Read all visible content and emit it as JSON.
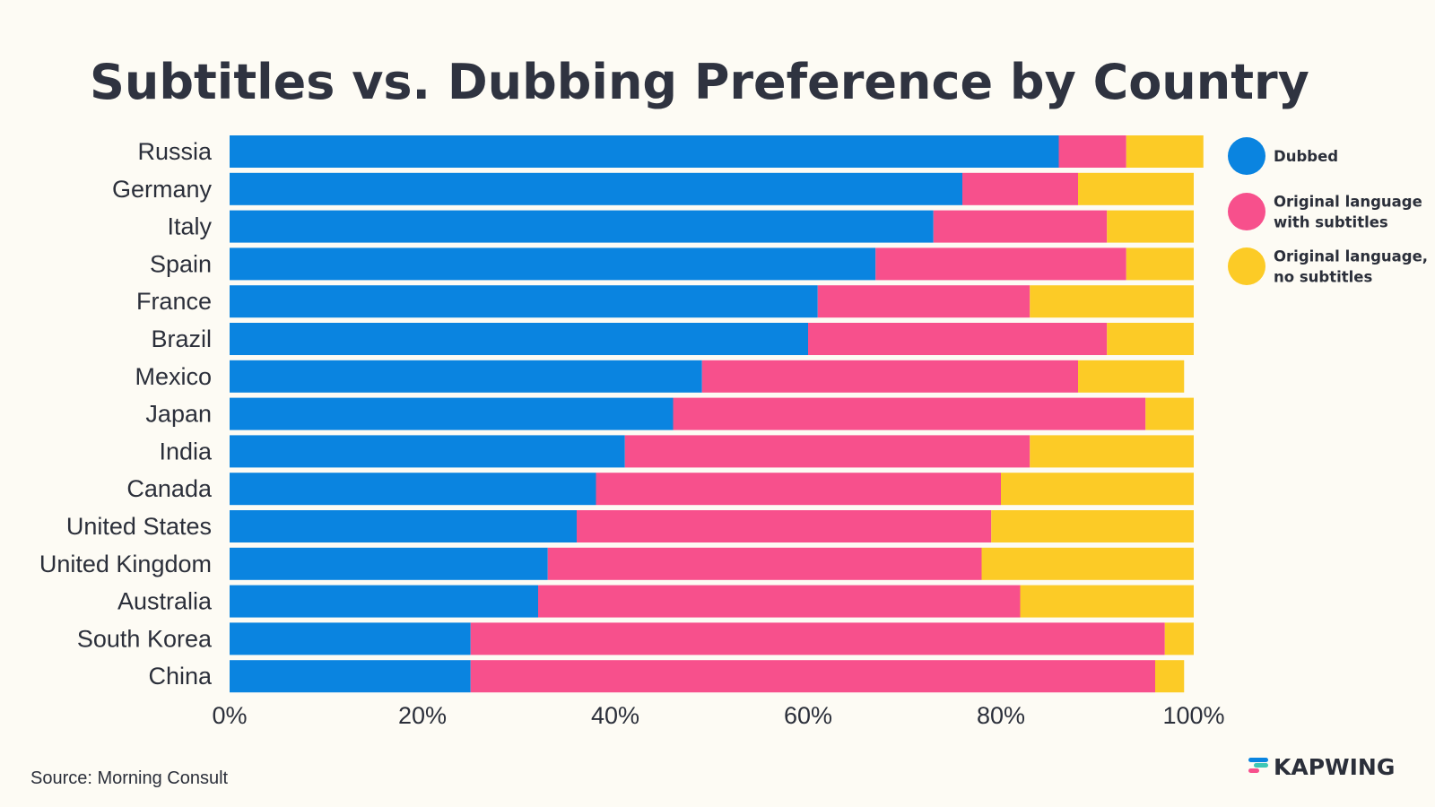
{
  "colors": {
    "background": "#fdfbf4",
    "dubbed": "#0a84e0",
    "subtitles": "#f7508c",
    "no_subtitles": "#fccb26",
    "text": "#2b2f3a"
  },
  "chart_data": {
    "type": "bar",
    "orientation": "horizontal",
    "stacked": true,
    "title": "Subtitles vs. Dubbing Preference by Country",
    "categories": [
      "Russia",
      "Germany",
      "Italy",
      "Spain",
      "France",
      "Brazil",
      "Mexico",
      "Japan",
      "India",
      "Canada",
      "United States",
      "United Kingdom",
      "Australia",
      "South Korea",
      "China"
    ],
    "series": [
      {
        "name": "Dubbed",
        "color_key": "dubbed",
        "values": [
          86,
          76,
          73,
          67,
          61,
          60,
          49,
          46,
          41,
          38,
          36,
          33,
          32,
          25,
          25
        ]
      },
      {
        "name": "Original language with subtitles",
        "color_key": "subtitles",
        "values": [
          7,
          12,
          18,
          26,
          22,
          31,
          39,
          49,
          42,
          42,
          43,
          45,
          50,
          72,
          71
        ]
      },
      {
        "name": "Original language, no subtitles",
        "color_key": "no_subtitles",
        "values": [
          8,
          12,
          9,
          7,
          17,
          9,
          11,
          5,
          17,
          20,
          21,
          22,
          18,
          3,
          3
        ]
      }
    ],
    "legend_lines": [
      [
        "Dubbed"
      ],
      [
        "Original language",
        "with subtitles"
      ],
      [
        "Original language,",
        "no subtitles"
      ]
    ],
    "xlim": [
      0,
      100
    ],
    "xticks": [
      0,
      20,
      40,
      60,
      80,
      100
    ],
    "xtick_labels": [
      "0%",
      "20%",
      "40%",
      "60%",
      "80%",
      "100%"
    ],
    "xlabel": "",
    "ylabel": "",
    "grid": false,
    "legend_position": "right"
  },
  "footer": {
    "source": "Source: Morning Consult",
    "brand": "KAPWING",
    "brand_icon": "kapwing-logo-icon"
  }
}
